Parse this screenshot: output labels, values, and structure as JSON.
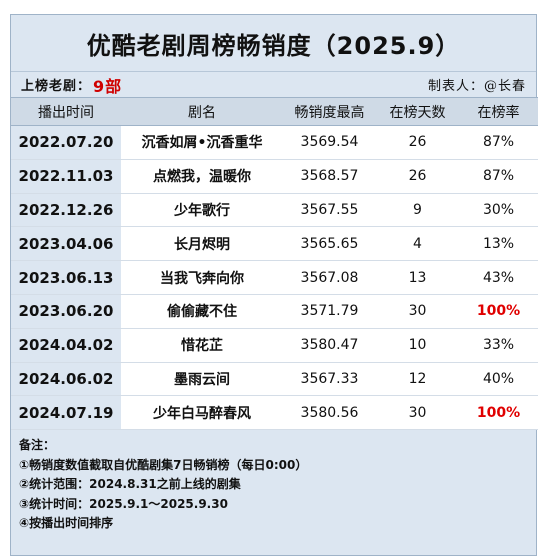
{
  "title": "优酷老剧周榜畅销度（2025.9）",
  "meta": {
    "count_label": "上榜老剧：",
    "count_value": "9部",
    "author": "制表人：@长春"
  },
  "table": {
    "headers": [
      "播出时间",
      "剧名",
      "畅销度最高",
      "在榜天数",
      "在榜率"
    ],
    "rows": [
      {
        "date": "2022.07.20",
        "name": "沉香如屑•沉香重华",
        "peak": "3569.54",
        "days": "26",
        "rate": "87%",
        "full": false
      },
      {
        "date": "2022.11.03",
        "name": "点燃我，温暖你",
        "peak": "3568.57",
        "days": "26",
        "rate": "87%",
        "full": false
      },
      {
        "date": "2022.12.26",
        "name": "少年歌行",
        "peak": "3567.55",
        "days": "9",
        "rate": "30%",
        "full": false
      },
      {
        "date": "2023.04.06",
        "name": "长月烬明",
        "peak": "3565.65",
        "days": "4",
        "rate": "13%",
        "full": false
      },
      {
        "date": "2023.06.13",
        "name": "当我飞奔向你",
        "peak": "3567.08",
        "days": "13",
        "rate": "43%",
        "full": false
      },
      {
        "date": "2023.06.20",
        "name": "偷偷藏不住",
        "peak": "3571.79",
        "days": "30",
        "rate": "100%",
        "full": true
      },
      {
        "date": "2024.04.02",
        "name": "惜花芷",
        "peak": "3580.47",
        "days": "10",
        "rate": "33%",
        "full": false
      },
      {
        "date": "2024.06.02",
        "name": "墨雨云间",
        "peak": "3567.33",
        "days": "12",
        "rate": "40%",
        "full": false
      },
      {
        "date": "2024.07.19",
        "name": "少年白马醉春风",
        "peak": "3580.56",
        "days": "30",
        "rate": "100%",
        "full": true
      }
    ]
  },
  "notes": {
    "heading": "备注：",
    "lines": [
      "①畅销度数值截取自优酷剧集7日畅销榜（每日0:00）",
      "②统计范围：2024.8.31之前上线的剧集",
      "③统计时间：2025.9.1～2025.9.30",
      "④按播出时间排序"
    ]
  },
  "colors": {
    "panel": "#dce6f1",
    "header": "#cfdae6",
    "highlight_red": "#e00000"
  }
}
